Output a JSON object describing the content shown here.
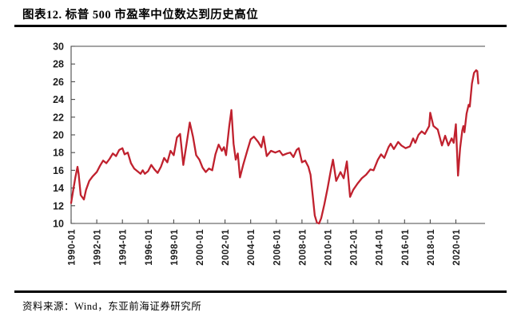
{
  "header": {
    "title": "图表12. 标普 500 市盈率中位数达到历史高位"
  },
  "footer": {
    "source_text": "资料来源：Wind，东亚前海证券研究所"
  },
  "chart_data": {
    "type": "line",
    "title": "图表12. 标普 500 市盈率中位数达到历史高位",
    "xlabel": "",
    "ylabel": "",
    "ylim": [
      10,
      30
    ],
    "yticks": [
      10,
      12,
      14,
      16,
      18,
      20,
      22,
      24,
      26,
      28,
      30
    ],
    "xticks": [
      "1990-01",
      "1992-01",
      "1994-01",
      "1996-01",
      "1998-01",
      "2000-01",
      "2002-01",
      "2004-01",
      "2006-01",
      "2008-01",
      "2010-01",
      "2012-01",
      "2014-01",
      "2016-01",
      "2018-01",
      "2020-01"
    ],
    "grid": false,
    "legend": "none",
    "line_color": "#c0212e",
    "axis_color": "#4a4a4a",
    "points": [
      [
        "1990-01",
        12.3
      ],
      [
        "1990-03",
        13.8
      ],
      [
        "1990-05",
        15.2
      ],
      [
        "1990-07",
        16.4
      ],
      [
        "1990-08",
        15.6
      ],
      [
        "1990-10",
        13.2
      ],
      [
        "1991-01",
        12.7
      ],
      [
        "1991-03",
        13.8
      ],
      [
        "1991-06",
        14.8
      ],
      [
        "1991-09",
        15.3
      ],
      [
        "1992-01",
        15.8
      ],
      [
        "1992-04",
        16.5
      ],
      [
        "1992-07",
        17.1
      ],
      [
        "1992-10",
        16.8
      ],
      [
        "1993-01",
        17.3
      ],
      [
        "1993-04",
        17.9
      ],
      [
        "1993-07",
        17.6
      ],
      [
        "1993-10",
        18.3
      ],
      [
        "1994-01",
        18.5
      ],
      [
        "1994-03",
        17.8
      ],
      [
        "1994-06",
        18.0
      ],
      [
        "1994-09",
        16.8
      ],
      [
        "1994-12",
        16.2
      ],
      [
        "1995-03",
        15.9
      ],
      [
        "1995-06",
        15.6
      ],
      [
        "1995-08",
        16.0
      ],
      [
        "1995-10",
        15.6
      ],
      [
        "1996-01",
        15.9
      ],
      [
        "1996-04",
        16.6
      ],
      [
        "1996-07",
        16.1
      ],
      [
        "1996-10",
        15.7
      ],
      [
        "1997-01",
        16.4
      ],
      [
        "1997-04",
        17.4
      ],
      [
        "1997-07",
        16.9
      ],
      [
        "1997-10",
        18.2
      ],
      [
        "1998-01",
        17.7
      ],
      [
        "1998-04",
        19.7
      ],
      [
        "1998-07",
        20.1
      ],
      [
        "1998-10",
        16.6
      ],
      [
        "1999-01",
        19.0
      ],
      [
        "1999-04",
        21.4
      ],
      [
        "1999-07",
        19.8
      ],
      [
        "1999-10",
        17.7
      ],
      [
        "2000-01",
        17.2
      ],
      [
        "2000-04",
        16.3
      ],
      [
        "2000-07",
        15.8
      ],
      [
        "2000-10",
        16.2
      ],
      [
        "2001-01",
        16.0
      ],
      [
        "2001-04",
        17.8
      ],
      [
        "2001-07",
        18.9
      ],
      [
        "2001-10",
        18.2
      ],
      [
        "2001-12",
        18.6
      ],
      [
        "2002-02",
        17.7
      ],
      [
        "2002-05",
        21.0
      ],
      [
        "2002-07",
        22.8
      ],
      [
        "2002-09",
        19.0
      ],
      [
        "2002-11",
        17.2
      ],
      [
        "2003-01",
        17.9
      ],
      [
        "2003-03",
        15.2
      ],
      [
        "2003-06",
        16.6
      ],
      [
        "2003-10",
        18.3
      ],
      [
        "2004-01",
        19.5
      ],
      [
        "2004-04",
        19.8
      ],
      [
        "2004-08",
        19.2
      ],
      [
        "2004-11",
        18.6
      ],
      [
        "2005-01",
        19.8
      ],
      [
        "2005-04",
        17.6
      ],
      [
        "2005-08",
        18.2
      ],
      [
        "2005-12",
        18.0
      ],
      [
        "2006-04",
        18.2
      ],
      [
        "2006-07",
        17.7
      ],
      [
        "2006-11",
        17.9
      ],
      [
        "2007-02",
        18.0
      ],
      [
        "2007-05",
        17.5
      ],
      [
        "2007-08",
        18.3
      ],
      [
        "2007-10",
        18.5
      ],
      [
        "2008-01",
        16.9
      ],
      [
        "2008-04",
        17.1
      ],
      [
        "2008-07",
        16.4
      ],
      [
        "2008-09",
        15.5
      ],
      [
        "2008-11",
        13.2
      ],
      [
        "2009-01",
        10.9
      ],
      [
        "2009-03",
        10.1
      ],
      [
        "2009-05",
        10.0
      ],
      [
        "2009-07",
        10.6
      ],
      [
        "2009-10",
        12.2
      ],
      [
        "2010-01",
        14.0
      ],
      [
        "2010-04",
        16.0
      ],
      [
        "2010-06",
        17.2
      ],
      [
        "2010-09",
        14.8
      ],
      [
        "2011-01",
        15.8
      ],
      [
        "2011-04",
        15.1
      ],
      [
        "2011-07",
        17.0
      ],
      [
        "2011-10",
        13.0
      ],
      [
        "2012-01",
        13.8
      ],
      [
        "2012-05",
        14.5
      ],
      [
        "2012-09",
        15.1
      ],
      [
        "2013-01",
        15.5
      ],
      [
        "2013-05",
        16.1
      ],
      [
        "2013-08",
        16.0
      ],
      [
        "2013-12",
        17.2
      ],
      [
        "2014-03",
        17.8
      ],
      [
        "2014-06",
        17.4
      ],
      [
        "2014-10",
        18.6
      ],
      [
        "2014-12",
        19.0
      ],
      [
        "2015-03",
        18.4
      ],
      [
        "2015-07",
        19.2
      ],
      [
        "2015-10",
        18.8
      ],
      [
        "2016-02",
        18.5
      ],
      [
        "2016-06",
        18.7
      ],
      [
        "2016-09",
        19.6
      ],
      [
        "2016-11",
        19.1
      ],
      [
        "2017-02",
        20.0
      ],
      [
        "2017-05",
        20.4
      ],
      [
        "2017-08",
        20.1
      ],
      [
        "2017-12",
        21.0
      ],
      [
        "2018-01",
        22.5
      ],
      [
        "2018-04",
        21.0
      ],
      [
        "2018-08",
        20.6
      ],
      [
        "2018-12",
        18.8
      ],
      [
        "2019-03",
        19.9
      ],
      [
        "2019-06",
        18.8
      ],
      [
        "2019-09",
        19.6
      ],
      [
        "2019-11",
        19.1
      ],
      [
        "2020-01",
        21.2
      ],
      [
        "2020-03",
        15.4
      ],
      [
        "2020-05",
        18.5
      ],
      [
        "2020-07",
        20.5
      ],
      [
        "2020-08",
        21.0
      ],
      [
        "2020-09",
        20.3
      ],
      [
        "2020-11",
        22.4
      ],
      [
        "2021-01",
        23.4
      ],
      [
        "2021-02",
        23.2
      ],
      [
        "2021-04",
        25.8
      ],
      [
        "2021-06",
        27.0
      ],
      [
        "2021-08",
        27.3
      ],
      [
        "2021-09",
        27.2
      ],
      [
        "2021-10",
        25.8
      ]
    ]
  }
}
